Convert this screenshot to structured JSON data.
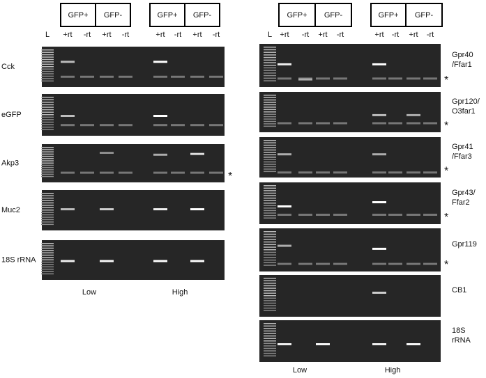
{
  "panels": [
    {
      "headers": [
        "GFP+",
        "GFP-",
        "GFP+",
        "GFP-"
      ],
      "lanes": [
        "L",
        "+rt",
        "-rt",
        "+rt",
        "-rt",
        "+rt",
        "-rt",
        "+rt",
        "-rt"
      ],
      "rows": [
        {
          "lines": [
            "Cck"
          ]
        },
        {
          "lines": [
            "eGFP"
          ]
        },
        {
          "lines": [
            "Akp3"
          ],
          "marker": "*"
        },
        {
          "lines": [
            "Muc2"
          ]
        },
        {
          "lines": [
            "18S rRNA"
          ]
        }
      ],
      "groups": [
        "Low",
        "High"
      ]
    },
    {
      "headers": [
        "GFP+",
        "GFP-",
        "GFP+",
        "GFP-"
      ],
      "lanes": [
        "L",
        "+rt",
        "-rt",
        "+rt",
        "-rt",
        "+rt",
        "-rt",
        "+rt",
        "-rt"
      ],
      "rows": [
        {
          "lines": [
            "Gpr40",
            "/Ffar1"
          ],
          "marker": "*"
        },
        {
          "lines": [
            "Gpr120/",
            "O3far1"
          ],
          "marker": "*"
        },
        {
          "lines": [
            "Gpr41",
            "/Ffar3"
          ],
          "marker": "*"
        },
        {
          "lines": [
            "Gpr43/",
            "Ffar2"
          ],
          "marker": "*"
        },
        {
          "lines": [
            "Gpr119"
          ],
          "marker": "*"
        },
        {
          "lines": [
            "CB1"
          ]
        },
        {
          "lines": [
            "18S",
            "rRNA"
          ]
        }
      ],
      "groups": [
        "Low",
        "High"
      ]
    }
  ]
}
